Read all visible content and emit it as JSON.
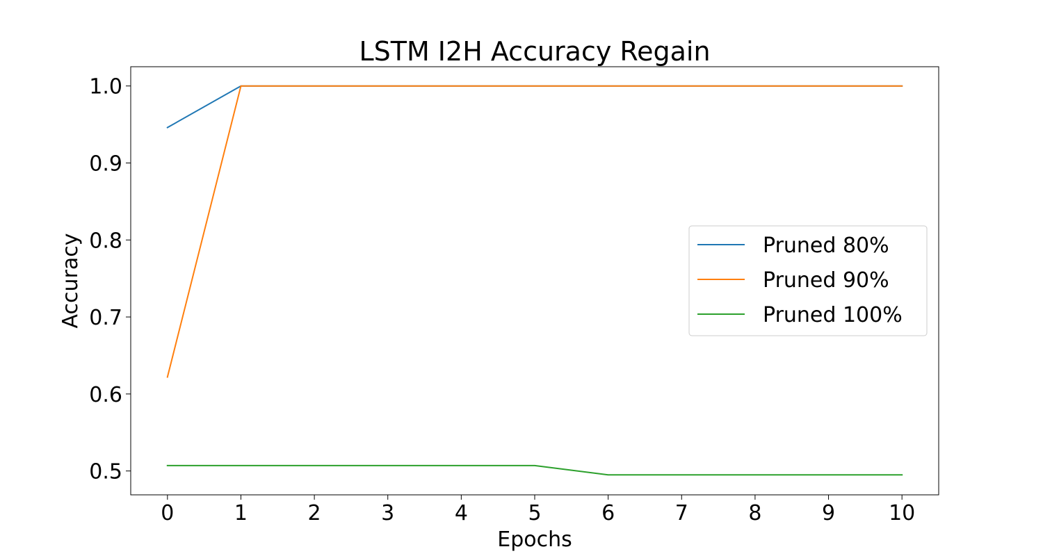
{
  "chart_data": {
    "type": "line",
    "title": "LSTM I2H Accuracy Regain",
    "xlabel": "Epochs",
    "ylabel": "Accuracy",
    "x": [
      0,
      1,
      2,
      3,
      4,
      5,
      6,
      7,
      8,
      9,
      10
    ],
    "xlim": [
      -0.5,
      10.5
    ],
    "ylim": [
      0.469,
      1.025
    ],
    "xticks": [
      0,
      1,
      2,
      3,
      4,
      5,
      6,
      7,
      8,
      9,
      10
    ],
    "yticks": [
      0.5,
      0.6,
      0.7,
      0.8,
      0.9,
      1.0
    ],
    "ytick_labels": [
      "0.5",
      "0.6",
      "0.7",
      "0.8",
      "0.9",
      "1.0"
    ],
    "grid": false,
    "legend_position": "center-right",
    "series": [
      {
        "name": "Pruned 80%",
        "color": "#1f77b4",
        "values": [
          0.946,
          1.0,
          1.0,
          1.0,
          1.0,
          1.0,
          1.0,
          1.0,
          1.0,
          1.0,
          1.0
        ]
      },
      {
        "name": "Pruned 90%",
        "color": "#ff7f0e",
        "values": [
          0.622,
          1.0,
          1.0,
          1.0,
          1.0,
          1.0,
          1.0,
          1.0,
          1.0,
          1.0,
          1.0
        ]
      },
      {
        "name": "Pruned 100%",
        "color": "#2ca02c",
        "values": [
          0.507,
          0.507,
          0.507,
          0.507,
          0.507,
          0.507,
          0.495,
          0.495,
          0.495,
          0.495,
          0.495
        ]
      }
    ]
  }
}
